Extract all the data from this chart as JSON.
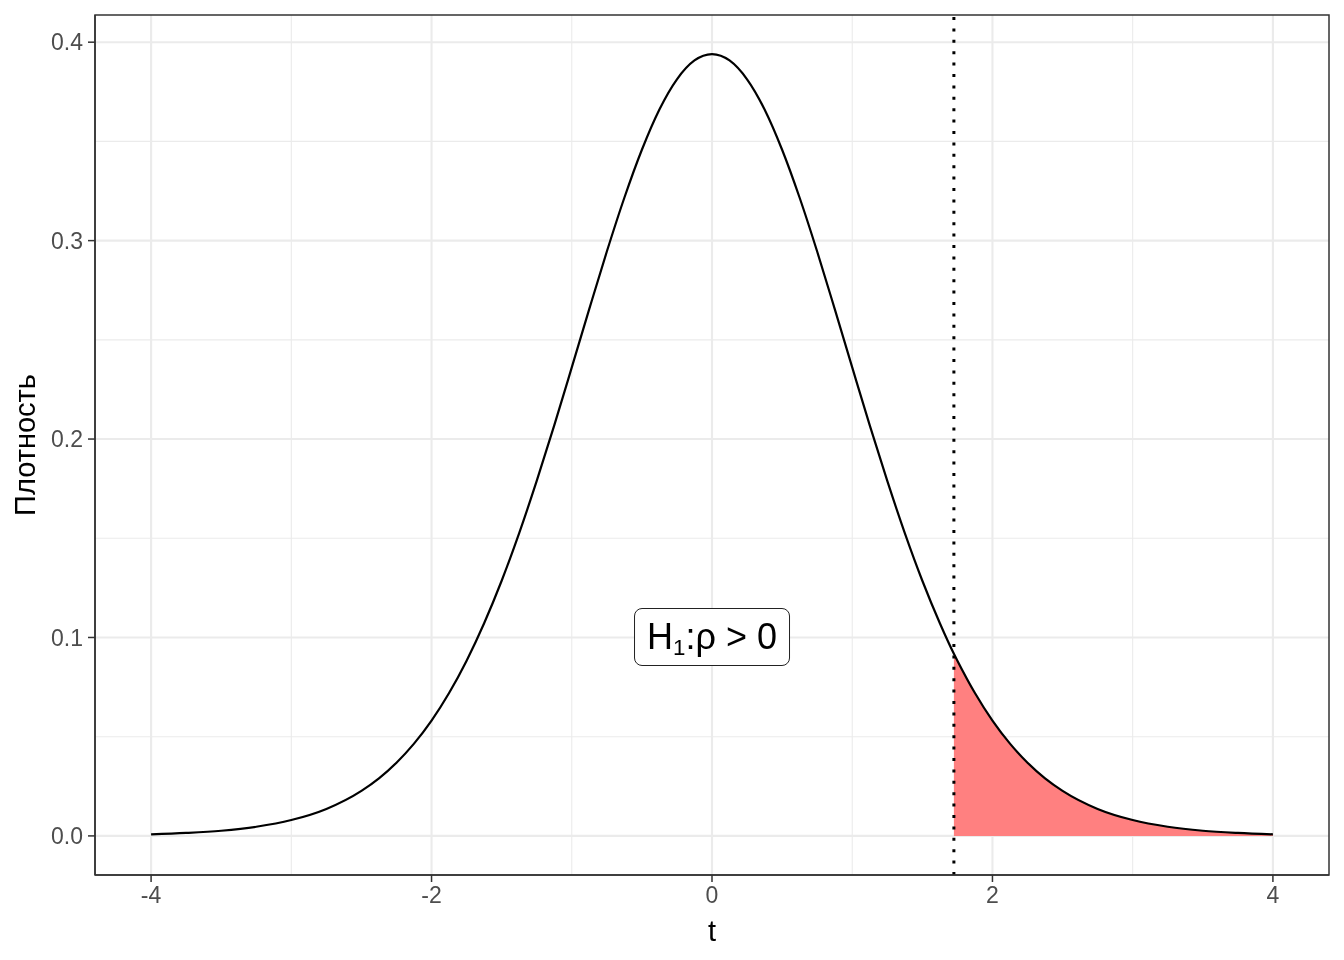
{
  "chart_data": {
    "type": "line",
    "xlabel": "t",
    "ylabel": "Плотность",
    "xlim": [
      -4.4,
      4.4
    ],
    "ylim": [
      -0.0197,
      0.4137
    ],
    "xticks": [
      -4,
      -2,
      0,
      2,
      4
    ],
    "yticks": [
      {
        "value": 0,
        "label": "0.0"
      },
      0.1,
      0.2,
      0.3,
      0.4
    ],
    "grid": true,
    "series": [
      {
        "type": "area",
        "color": "#ff8080",
        "x": [
          1.725,
          1.75,
          1.875,
          2,
          2.125,
          2.25,
          2.375,
          2.5,
          2.75,
          3,
          3.25,
          3.5,
          3.75,
          4
        ],
        "values": [
          0.0918,
          0.0883,
          0.072,
          0.0581,
          0.0465,
          0.0369,
          0.029,
          0.0227,
          0.0136,
          0.008,
          0.0046,
          0.0026,
          0.0015,
          0.0008
        ]
      },
      {
        "color": "#000000",
        "x": [
          -4,
          -3.75,
          -3.5,
          -3.25,
          -3,
          -2.75,
          -2.5,
          -2.375,
          -2.25,
          -2.125,
          -2,
          -1.875,
          -1.75,
          -1.625,
          -1.5,
          -1.375,
          -1.25,
          -1.125,
          -1,
          -0.875,
          -0.75,
          -0.625,
          -0.5,
          -0.375,
          -0.25,
          -0.125,
          0,
          0.125,
          0.25,
          0.375,
          0.5,
          0.625,
          0.75,
          0.875,
          1,
          1.125,
          1.25,
          1.375,
          1.5,
          1.625,
          1.725,
          1.75,
          1.875,
          2,
          2.125,
          2.25,
          2.375,
          2.5,
          2.75,
          3,
          3.25,
          3.5,
          3.75,
          4
        ],
        "values": [
          0.0008,
          0.0015,
          0.0026,
          0.0046,
          0.008,
          0.0136,
          0.0227,
          0.029,
          0.0369,
          0.0465,
          0.0581,
          0.072,
          0.0883,
          0.1072,
          0.1286,
          0.1526,
          0.1789,
          0.2069,
          0.2361,
          0.2656,
          0.2945,
          0.3216,
          0.3458,
          0.3661,
          0.3813,
          0.3908,
          0.394,
          0.3908,
          0.3813,
          0.3661,
          0.3458,
          0.3216,
          0.2945,
          0.2656,
          0.2361,
          0.2069,
          0.1789,
          0.1526,
          0.1286,
          0.1072,
          0.0918,
          0.0883,
          0.072,
          0.0581,
          0.0465,
          0.0369,
          0.029,
          0.0227,
          0.0136,
          0.008,
          0.0046,
          0.0026,
          0.0015,
          0.0008
        ]
      }
    ],
    "ref_lines": [
      {
        "axis": "x",
        "value": 1.725,
        "color": "#000000",
        "line_style": "dotted"
      }
    ],
    "annotations": [
      "H$_{1}$:ρ > 0"
    ]
  }
}
